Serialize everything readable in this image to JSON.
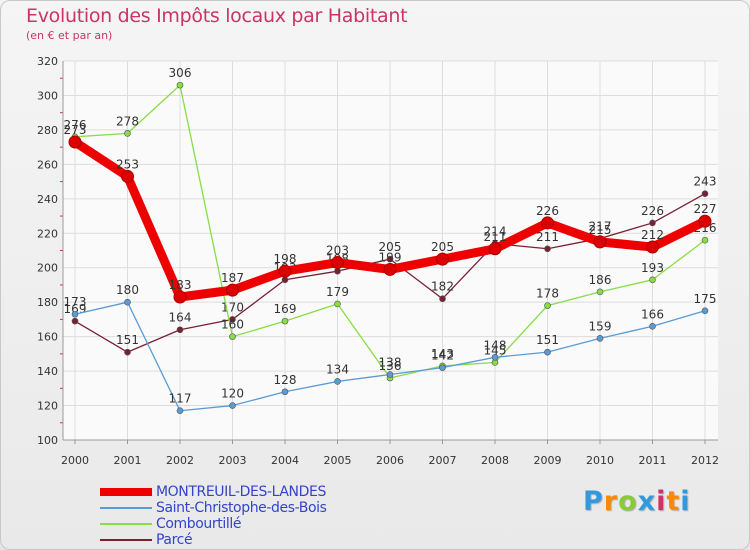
{
  "chart_data": {
    "type": "line",
    "title": "Evolution des Impôts locaux par Habitant",
    "subtitle": "(en € et par an)",
    "xlabel": "",
    "ylabel": "",
    "ylim": [
      100,
      320
    ],
    "y_ticks": [
      100,
      120,
      140,
      160,
      180,
      200,
      220,
      240,
      260,
      280,
      300,
      320
    ],
    "categories": [
      "2000",
      "2001",
      "2002",
      "2003",
      "2004",
      "2005",
      "2006",
      "2007",
      "2008",
      "2009",
      "2010",
      "2011",
      "2012"
    ],
    "series": [
      {
        "name": "MONTREUIL-DES-LANDES",
        "color": "#ee0000",
        "values": [
          273,
          253,
          183,
          187,
          198,
          203,
          199,
          205,
          211,
          226,
          215,
          212,
          227
        ],
        "labels": [
          "273",
          "253",
          "183",
          "187",
          "198",
          "203",
          "199",
          "205",
          "211",
          "226",
          "215",
          "212",
          "227"
        ]
      },
      {
        "name": "Saint-Christophe-des-Bois",
        "color": "#5b9bd5",
        "values": [
          173,
          180,
          117,
          120,
          128,
          134,
          138,
          142,
          148,
          151,
          159,
          166,
          175
        ],
        "labels": [
          "173",
          "180",
          "117",
          "120",
          "128",
          "134",
          "138",
          "142",
          "148",
          "151",
          "159",
          "166",
          "175"
        ]
      },
      {
        "name": "Combourtillé",
        "color": "#88dd44",
        "values": [
          276,
          278,
          306,
          null,
          null,
          179,
          136,
          143,
          145,
          178,
          186,
          193,
          216
        ],
        "labels": [
          "276",
          "278",
          "306",
          "160",
          "169",
          "179",
          "136",
          "143",
          "145",
          "178",
          "186",
          "193",
          "216"
        ]
      },
      {
        "name": "Parcé",
        "color": "#772233",
        "values": [
          169,
          151,
          164,
          170,
          193,
          198,
          205,
          182,
          214,
          211,
          217,
          226,
          243
        ],
        "labels": [
          "169",
          "151",
          "164",
          "170",
          "193",
          "198",
          "205",
          "182",
          "214",
          "211",
          "217",
          "226",
          "243"
        ]
      }
    ],
    "extra_segment": {
      "series": "Combourtillé",
      "values": [
        160,
        169,
        179
      ],
      "start_index": 3
    }
  },
  "brand": {
    "text": "Proxiti",
    "colors": [
      "#3399dd",
      "#ff8800",
      "#88cc33",
      "#3399dd",
      "#cc3366",
      "#ff8800",
      "#3399dd"
    ]
  }
}
